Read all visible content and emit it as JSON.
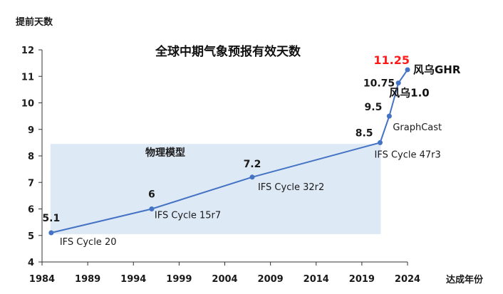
{
  "chart_data": {
    "type": "line",
    "title": "全球中期气象预报有效天数",
    "ylabel": "提前天数",
    "xlabel": "达成年份",
    "xlim": [
      1984,
      2024
    ],
    "ylim": [
      4,
      12
    ],
    "x_ticks": [
      "1984",
      "1989",
      "1994",
      "1999",
      "2004",
      "2009",
      "2014",
      "2019",
      "2024"
    ],
    "y_ticks": [
      "4",
      "5",
      "6",
      "7",
      "8",
      "9",
      "10",
      "11",
      "12"
    ],
    "region": {
      "label": "物理模型",
      "x_range": [
        1985,
        2021
      ],
      "y_range": [
        5.05,
        8.45
      ]
    },
    "series": [
      {
        "color": "#4472c4",
        "points": [
          {
            "x": 1985,
            "y": 5.1,
            "value_label": "5.1",
            "model": "IFS Cycle 20"
          },
          {
            "x": 1996,
            "y": 6,
            "value_label": "6",
            "model": "IFS Cycle 15r7"
          },
          {
            "x": 2007,
            "y": 7.2,
            "value_label": "7.2",
            "model": "IFS Cycle 32r2"
          },
          {
            "x": 2021,
            "y": 8.5,
            "value_label": "8.5",
            "model": "IFS Cycle 47r3"
          },
          {
            "x": 2022,
            "y": 9.5,
            "value_label": "9.5",
            "model": "GraphCast"
          },
          {
            "x": 2023,
            "y": 10.75,
            "value_label": "10.75",
            "model": "风乌1.0"
          },
          {
            "x": 2024,
            "y": 11.25,
            "value_label": "11.25",
            "model": "风乌GHR"
          }
        ]
      }
    ]
  },
  "colors": {
    "line": "#4472c4",
    "highlight": "#ff1a1a",
    "region_fill": "#dde9f5"
  }
}
